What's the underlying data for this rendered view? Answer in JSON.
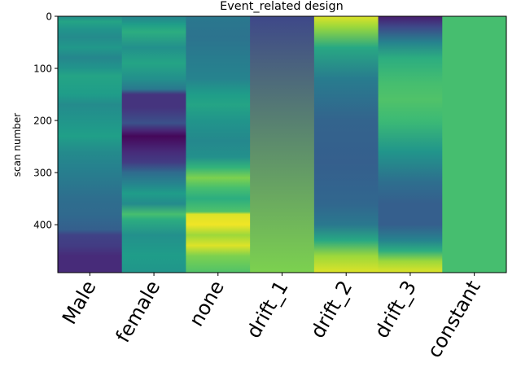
{
  "chart_data": {
    "type": "heatmap",
    "title": "Event_related design",
    "xlabel": "",
    "ylabel": "scan number",
    "columns": [
      "Male",
      "female",
      "none",
      "drift_1",
      "drift_2",
      "drift_3",
      "constant"
    ],
    "y_ticks": [
      0,
      100,
      200,
      300,
      400
    ],
    "ylim": [
      0,
      492
    ],
    "y_inverted": true,
    "colormap": "viridis",
    "value_range": [
      0,
      1
    ],
    "colormap_stops": [
      "#440154",
      "#482878",
      "#3e4989",
      "#31688e",
      "#26828e",
      "#1f9e89",
      "#35b779",
      "#6ece58",
      "#b5de2b",
      "#fde725"
    ],
    "column_profiles": [
      {
        "name": "Male",
        "scans": [
          0,
          10,
          25,
          40,
          60,
          80,
          100,
          115,
          150,
          170,
          200,
          230,
          260,
          290,
          320,
          350,
          380,
          410,
          420,
          440,
          460,
          492
        ],
        "values": [
          0.48,
          0.58,
          0.52,
          0.48,
          0.53,
          0.46,
          0.52,
          0.58,
          0.55,
          0.48,
          0.52,
          0.56,
          0.48,
          0.44,
          0.4,
          0.36,
          0.34,
          0.3,
          0.2,
          0.18,
          0.12,
          0.12
        ]
      },
      {
        "name": "female",
        "scans": [
          0,
          15,
          30,
          60,
          90,
          120,
          140,
          150,
          175,
          205,
          220,
          230,
          240,
          260,
          280,
          300,
          320,
          340,
          360,
          380,
          390,
          420,
          460,
          492
        ],
        "values": [
          0.45,
          0.55,
          0.62,
          0.5,
          0.58,
          0.5,
          0.4,
          0.15,
          0.15,
          0.25,
          0.1,
          0.02,
          0.05,
          0.12,
          0.18,
          0.35,
          0.45,
          0.55,
          0.48,
          0.7,
          0.62,
          0.5,
          0.55,
          0.52
        ]
      },
      {
        "name": "none",
        "scans": [
          0,
          40,
          80,
          120,
          150,
          170,
          200,
          240,
          270,
          290,
          310,
          330,
          350,
          375,
          380,
          400,
          420,
          440,
          460,
          492
        ],
        "values": [
          0.4,
          0.38,
          0.42,
          0.45,
          0.55,
          0.58,
          0.52,
          0.47,
          0.5,
          0.65,
          0.8,
          0.7,
          0.62,
          0.72,
          0.95,
          0.98,
          0.85,
          0.95,
          0.8,
          0.72
        ]
      },
      {
        "name": "drift_1",
        "scans": [
          0,
          492
        ],
        "values": [
          0.22,
          0.8
        ]
      },
      {
        "name": "drift_2",
        "scans": [
          0,
          20,
          60,
          120,
          200,
          280,
          360,
          400,
          430,
          460,
          492
        ],
        "values": [
          0.95,
          0.85,
          0.6,
          0.42,
          0.32,
          0.3,
          0.33,
          0.4,
          0.6,
          0.85,
          0.95
        ]
      },
      {
        "name": "drift_3",
        "scans": [
          0,
          20,
          50,
          80,
          130,
          160,
          200,
          260,
          320,
          360,
          400,
          430,
          450,
          470,
          492
        ],
        "values": [
          0.08,
          0.22,
          0.45,
          0.62,
          0.7,
          0.72,
          0.68,
          0.52,
          0.36,
          0.3,
          0.3,
          0.45,
          0.62,
          0.85,
          0.95
        ]
      },
      {
        "name": "constant",
        "scans": [
          0,
          492
        ],
        "values": [
          0.7,
          0.7
        ]
      }
    ]
  }
}
